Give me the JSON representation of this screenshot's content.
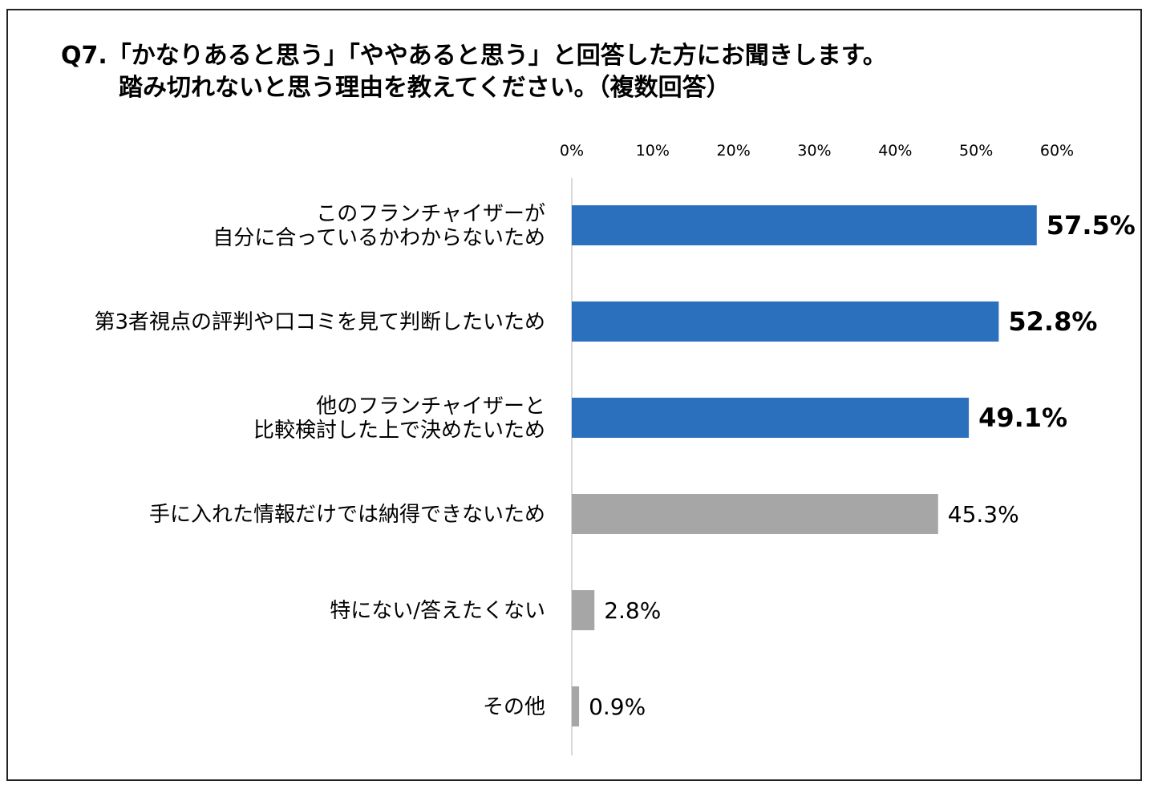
{
  "title_line1": "Q7.「かなりあると思う」「ややあると思う」と回答した方にお聞きします。",
  "title_line2": "踏み切れないと思う理由を教えてください。（複数回答）",
  "chart_data": {
    "type": "bar",
    "orientation": "horizontal",
    "categories": [
      [
        "このフランチャイザーが",
        "自分に合っているかわからないため"
      ],
      [
        "第3者視点の評判や口コミを見て判断したいため"
      ],
      [
        "他のフランチャイザーと",
        "比較検討した上で決めたいため"
      ],
      [
        "手に入れた情報だけでは納得できないため"
      ],
      [
        "特にない/答えたくない"
      ],
      [
        "その他"
      ]
    ],
    "values": [
      57.5,
      52.8,
      49.1,
      45.3,
      2.8,
      0.9
    ],
    "value_labels": [
      "57.5%",
      "52.8%",
      "49.1%",
      "45.3%",
      "2.8%",
      "0.9%"
    ],
    "highlighted": [
      true,
      true,
      true,
      false,
      false,
      false
    ],
    "xlim": [
      0,
      60
    ],
    "x_ticks": [
      "0%",
      "10%",
      "20%",
      "30%",
      "40%",
      "50%",
      "60%"
    ],
    "x_axis_position": "top",
    "grid": false,
    "colors": {
      "highlight": "#2b70bc",
      "normal": "#a6a6a6",
      "axis": "#d9d9d9"
    }
  }
}
